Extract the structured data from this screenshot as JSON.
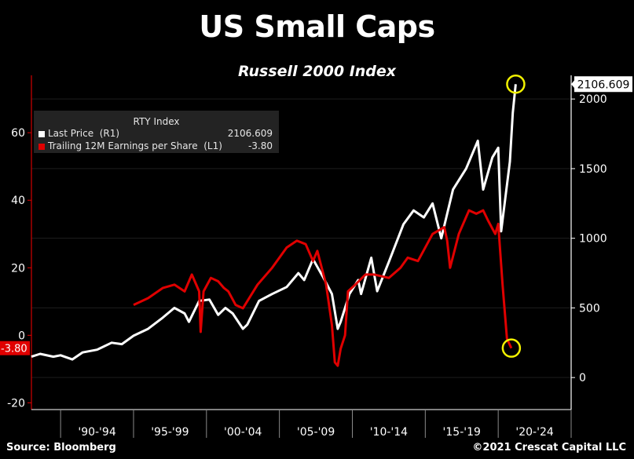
{
  "title": "US Small Caps",
  "subtitle": "Russell 2000 Index",
  "legend": {
    "title": "RTY Index",
    "items": [
      {
        "name": "Last Price  (R1)",
        "value": "2106.609"
      },
      {
        "name": "Trailing 12M Earnings per Share  (L1)",
        "value": "-3.80"
      }
    ]
  },
  "footer": {
    "source": "Source: Bloomberg",
    "copyright": "©2021 Crescat Capital LLC"
  },
  "colors": {
    "price": "#ffffff",
    "eps": "#e00000",
    "highlight_circle": "#f2f200",
    "background": "#000000"
  },
  "chart_data": {
    "type": "line",
    "x_tick_labels": [
      "'90-'94",
      "'95-'99",
      "'00-'04",
      "'05-'09",
      "'10-'14",
      "'15-'19",
      "'20-'24"
    ],
    "xlim": [
      1988,
      2025
    ],
    "left_axis": {
      "ticks": [
        "60",
        "40",
        "20",
        "0",
        "-20"
      ],
      "ylim": [
        -22,
        77
      ]
    },
    "right_axis": {
      "ticks": [
        "2000",
        "1500",
        "1000",
        "500",
        "0"
      ],
      "ylim": [
        -230,
        2170
      ]
    },
    "last_value_labels": {
      "right": "2106.609",
      "left": "-3.80"
    },
    "series": [
      {
        "name": "Last Price  (R1)",
        "axis": "right",
        "x": [
          1988.0,
          1988.6,
          1989.5,
          1990.0,
          1990.8,
          1991.5,
          1992.5,
          1993.5,
          1994.2,
          1995.0,
          1996.0,
          1997.0,
          1997.8,
          1998.5,
          1998.8,
          1999.5,
          2000.2,
          2000.8,
          2001.3,
          2001.8,
          2002.5,
          2002.8,
          2003.6,
          2004.5,
          2005.5,
          2006.3,
          2006.7,
          2007.3,
          2008.0,
          2008.6,
          2009.0,
          2009.2,
          2009.8,
          2010.4,
          2010.6,
          2011.3,
          2011.7,
          2012.5,
          2013.5,
          2014.2,
          2014.9,
          2015.5,
          2016.1,
          2016.9,
          2017.8,
          2018.6,
          2018.97,
          2019.6,
          2020.0,
          2020.2,
          2020.8,
          2021.0,
          2021.2
        ],
        "values": [
          150,
          170,
          150,
          160,
          130,
          180,
          200,
          250,
          240,
          300,
          350,
          430,
          500,
          460,
          400,
          550,
          560,
          450,
          500,
          460,
          350,
          380,
          550,
          600,
          650,
          750,
          700,
          850,
          720,
          600,
          350,
          400,
          600,
          700,
          600,
          860,
          620,
          830,
          1100,
          1200,
          1150,
          1250,
          1000,
          1350,
          1500,
          1700,
          1350,
          1580,
          1650,
          1050,
          1550,
          1900,
          2106.609
        ]
      },
      {
        "name": "Trailing 12M Earnings per Share  (L1)",
        "axis": "left",
        "x": [
          1995.0,
          1996.0,
          1997.0,
          1997.8,
          1998.5,
          1999.0,
          1999.5,
          1999.6,
          1999.8,
          2000.3,
          2000.8,
          2001.2,
          2001.5,
          2002.0,
          2002.5,
          2003.5,
          2004.5,
          2005.5,
          2006.2,
          2006.8,
          2007.3,
          2007.6,
          2008.2,
          2008.6,
          2008.8,
          2009.0,
          2009.2,
          2009.5,
          2009.7,
          2010.2,
          2010.9,
          2011.5,
          2012.5,
          2013.3,
          2013.8,
          2014.5,
          2015.5,
          2016.3,
          2016.5,
          2016.7,
          2017.3,
          2018.0,
          2018.5,
          2018.97,
          2019.3,
          2019.8,
          2020.0,
          2020.3,
          2020.6,
          2020.9
        ],
        "values": [
          9,
          11,
          14,
          15,
          13,
          18,
          13,
          1,
          13,
          17,
          16,
          14,
          13,
          9,
          8,
          15,
          20,
          26,
          28,
          27,
          22,
          25,
          15,
          3,
          -8,
          -9,
          -4,
          0,
          13,
          15,
          18,
          18,
          17,
          20,
          23,
          22,
          30,
          32,
          28,
          20,
          30,
          37,
          36,
          37,
          34,
          30,
          33,
          15,
          -1,
          -3.8
        ]
      }
    ]
  }
}
